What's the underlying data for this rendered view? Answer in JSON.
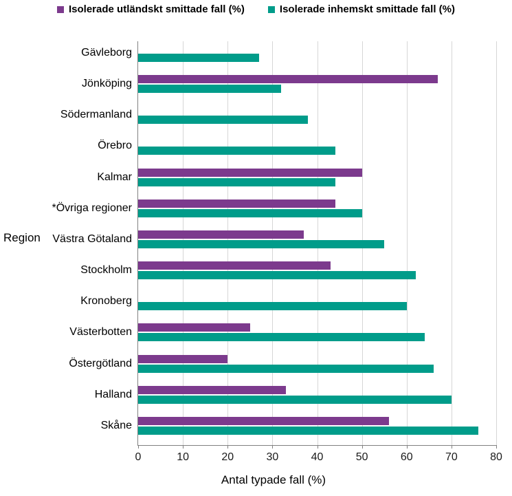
{
  "chart_data": {
    "type": "bar",
    "orientation": "horizontal",
    "title": "",
    "xlabel": "Antal typade fall (%)",
    "ylabel": "Region",
    "xlim": [
      0,
      80
    ],
    "xticks": [
      0,
      10,
      20,
      30,
      40,
      50,
      60,
      70,
      80
    ],
    "grid": "vertical",
    "legend_position": "top",
    "categories": [
      "Gävleborg",
      "Jönköping",
      "Södermanland",
      "Örebro",
      "Kalmar",
      "*Övriga regioner",
      "Västra Götaland",
      "Stockholm",
      "Kronoberg",
      "Västerbotten",
      "Östergötland",
      "Halland",
      "Skåne"
    ],
    "series": [
      {
        "name": "Isolerade utländskt smittade fall (%)",
        "color": "#7C3A8D",
        "values": [
          null,
          67,
          null,
          null,
          50,
          44,
          37,
          43,
          null,
          25,
          20,
          33,
          56
        ]
      },
      {
        "name": "Isolerade inhemskt smittade fall (%)",
        "color": "#009C8A",
        "values": [
          27,
          32,
          38,
          44,
          44,
          50,
          55,
          62,
          60,
          64,
          66,
          70,
          76
        ]
      }
    ],
    "colors": {
      "gridline": "#d6d6d6",
      "axis": "#808080"
    }
  }
}
